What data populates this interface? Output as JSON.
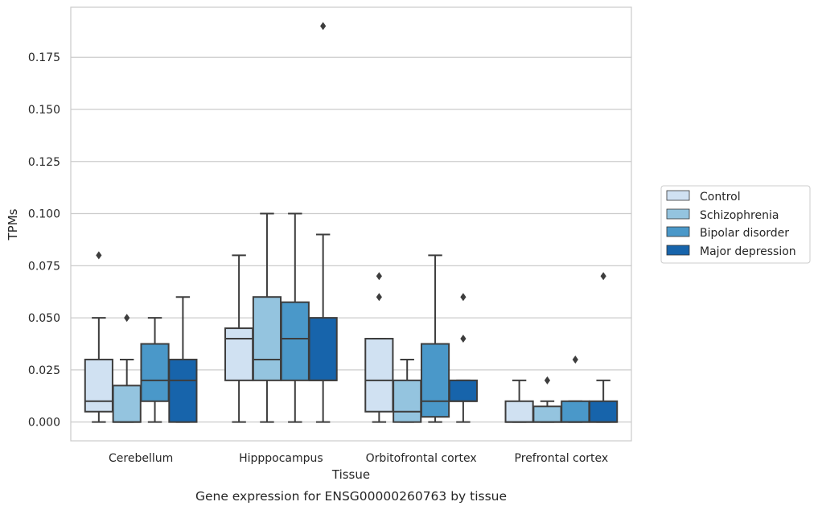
{
  "chart_data": {
    "type": "boxplot",
    "caption": "Gene expression for ENSG00000260763 by tissue",
    "xlabel": "Tissue",
    "ylabel": "TPMs",
    "ylim": [
      -0.009,
      0.199
    ],
    "yticks": [
      0.0,
      0.025,
      0.05,
      0.075,
      0.1,
      0.125,
      0.15,
      0.175
    ],
    "ytick_labels": [
      "0.000",
      "0.025",
      "0.050",
      "0.075",
      "0.100",
      "0.125",
      "0.150",
      "0.175"
    ],
    "grid": "horizontal",
    "legend_position": "right",
    "categories": [
      "Cerebellum",
      "Hipppocampus",
      "Orbitofrontal cortex",
      "Prefrontal cortex"
    ],
    "series": [
      {
        "name": "Control",
        "color": "#d0e1f2",
        "boxes": [
          {
            "whislo": 0.0,
            "q1": 0.005,
            "med": 0.01,
            "q3": 0.03,
            "whishi": 0.05,
            "fliers": [
              0.08
            ]
          },
          {
            "whislo": 0.0,
            "q1": 0.02,
            "med": 0.04,
            "q3": 0.045,
            "whishi": 0.08,
            "fliers": []
          },
          {
            "whislo": 0.0,
            "q1": 0.005,
            "med": 0.02,
            "q3": 0.04,
            "whishi": 0.04,
            "fliers": [
              0.06,
              0.07
            ]
          },
          {
            "whislo": 0.0,
            "q1": 0.0,
            "med": 0.0,
            "q3": 0.01,
            "whishi": 0.02,
            "fliers": []
          }
        ]
      },
      {
        "name": "Schizophrenia",
        "color": "#94c4df",
        "boxes": [
          {
            "whislo": 0.0,
            "q1": 0.0,
            "med": 0.0,
            "q3": 0.0175,
            "whishi": 0.03,
            "fliers": [
              0.05
            ]
          },
          {
            "whislo": 0.0,
            "q1": 0.02,
            "med": 0.03,
            "q3": 0.06,
            "whishi": 0.1,
            "fliers": []
          },
          {
            "whislo": 0.0,
            "q1": 0.0,
            "med": 0.005,
            "q3": 0.02,
            "whishi": 0.03,
            "fliers": []
          },
          {
            "whislo": 0.0,
            "q1": 0.0,
            "med": 0.0,
            "q3": 0.0075,
            "whishi": 0.01,
            "fliers": [
              0.02
            ]
          }
        ]
      },
      {
        "name": "Bipolar disorder",
        "color": "#4a98c9",
        "boxes": [
          {
            "whislo": 0.0,
            "q1": 0.01,
            "med": 0.02,
            "q3": 0.0375,
            "whishi": 0.05,
            "fliers": []
          },
          {
            "whislo": 0.0,
            "q1": 0.02,
            "med": 0.04,
            "q3": 0.0575,
            "whishi": 0.1,
            "fliers": []
          },
          {
            "whislo": 0.0,
            "q1": 0.0025,
            "med": 0.01,
            "q3": 0.0375,
            "whishi": 0.08,
            "fliers": []
          },
          {
            "whislo": 0.0,
            "q1": 0.0,
            "med": 0.0,
            "q3": 0.01,
            "whishi": 0.01,
            "fliers": [
              0.03
            ]
          }
        ]
      },
      {
        "name": "Major depression",
        "color": "#1764ab",
        "boxes": [
          {
            "whislo": 0.0,
            "q1": 0.0,
            "med": 0.02,
            "q3": 0.03,
            "whishi": 0.06,
            "fliers": []
          },
          {
            "whislo": 0.0,
            "q1": 0.02,
            "med": 0.02,
            "q3": 0.05,
            "whishi": 0.09,
            "fliers": [
              0.19
            ]
          },
          {
            "whislo": 0.0,
            "q1": 0.01,
            "med": 0.01,
            "q3": 0.02,
            "whishi": 0.02,
            "fliers": [
              0.04,
              0.06
            ]
          },
          {
            "whislo": 0.0,
            "q1": 0.0,
            "med": 0.0,
            "q3": 0.01,
            "whishi": 0.02,
            "fliers": [
              0.07
            ]
          }
        ]
      }
    ]
  }
}
